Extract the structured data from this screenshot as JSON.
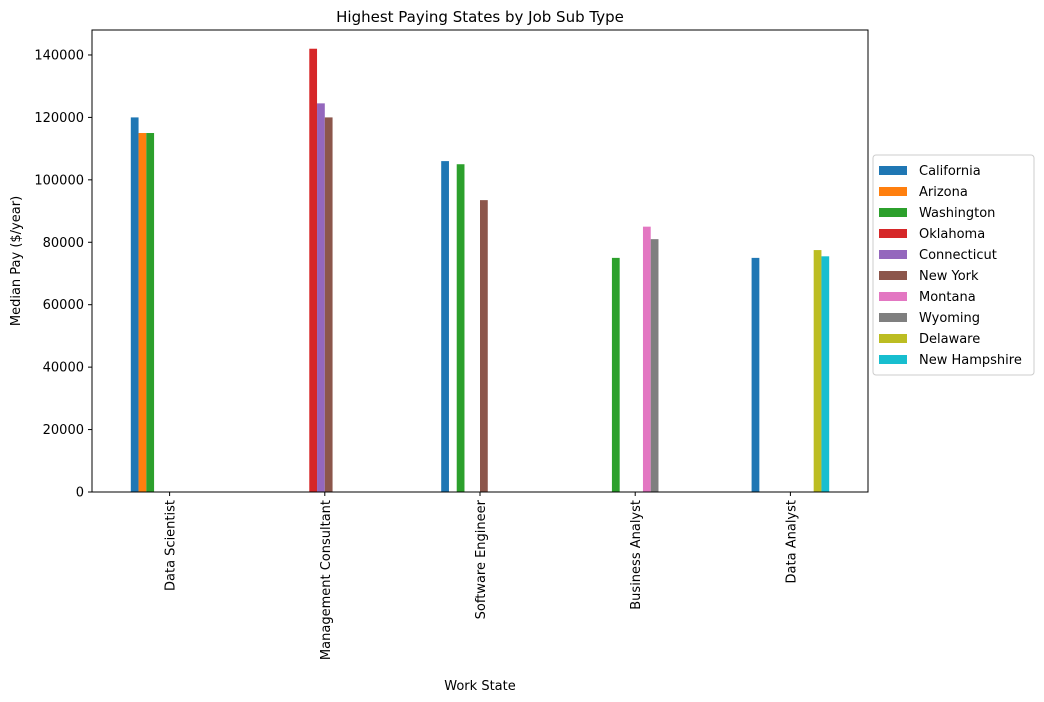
{
  "chart_data": {
    "type": "bar",
    "title": "Highest Paying States by Job Sub Type",
    "xlabel": "Work State",
    "ylabel": "Median Pay ($/year)",
    "ylim": [
      0,
      148000
    ],
    "yticks": [
      0,
      20000,
      40000,
      60000,
      80000,
      100000,
      120000,
      140000
    ],
    "ytick_labels": [
      "0",
      "20000",
      "40000",
      "60000",
      "80000",
      "100000",
      "120000",
      "140000"
    ],
    "categories": [
      "Data Scientist",
      "Management Consultant",
      "Software Engineer",
      "Business Analyst",
      "Data Analyst"
    ],
    "legend_position": "center-right outside",
    "series": [
      {
        "name": "California",
        "color": "#1f77b4",
        "values": [
          120000,
          null,
          106000,
          null,
          75000
        ]
      },
      {
        "name": "Arizona",
        "color": "#ff7f0e",
        "values": [
          115000,
          null,
          null,
          null,
          null
        ]
      },
      {
        "name": "Washington",
        "color": "#2ca02c",
        "values": [
          115000,
          null,
          105000,
          75000,
          null
        ]
      },
      {
        "name": "Oklahoma",
        "color": "#d62728",
        "values": [
          null,
          142000,
          null,
          null,
          null
        ]
      },
      {
        "name": "Connecticut",
        "color": "#9467bd",
        "values": [
          null,
          124500,
          null,
          null,
          null
        ]
      },
      {
        "name": "New York",
        "color": "#8c564b",
        "values": [
          null,
          120000,
          93500,
          null,
          null
        ]
      },
      {
        "name": "Montana",
        "color": "#e377c2",
        "values": [
          null,
          null,
          null,
          85000,
          null
        ]
      },
      {
        "name": "Wyoming",
        "color": "#7f7f7f",
        "values": [
          null,
          null,
          null,
          81000,
          null
        ]
      },
      {
        "name": "Delaware",
        "color": "#bcbd22",
        "values": [
          null,
          null,
          null,
          null,
          77500
        ]
      },
      {
        "name": "New Hampshire",
        "color": "#17becf",
        "values": [
          null,
          null,
          null,
          null,
          75500
        ]
      }
    ]
  }
}
